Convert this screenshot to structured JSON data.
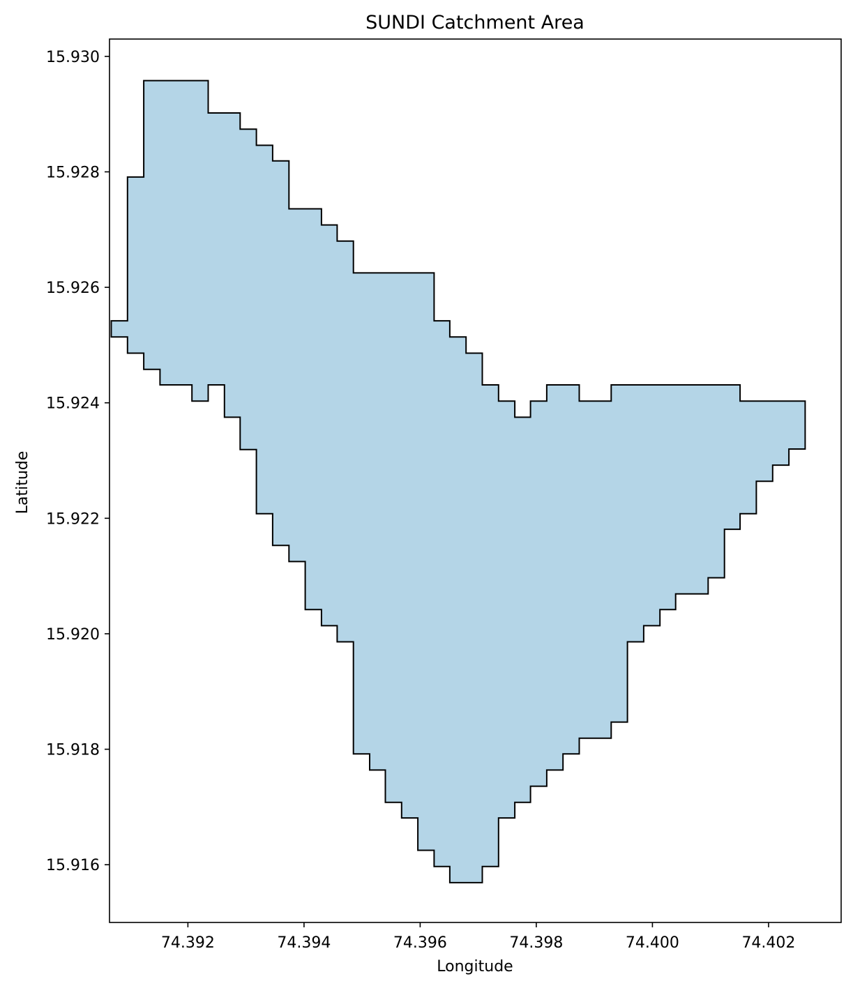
{
  "chart_data": {
    "type": "map",
    "title": "SUNDI Catchment Area",
    "xlabel": "Longitude",
    "ylabel": "Latitude",
    "xlim": [
      74.39065,
      74.40325
    ],
    "ylim": [
      15.915,
      15.9303
    ],
    "x_ticks": [
      {
        "value": 74.392,
        "label": "74.392"
      },
      {
        "value": 74.394,
        "label": "74.394"
      },
      {
        "value": 74.396,
        "label": "74.396"
      },
      {
        "value": 74.398,
        "label": "74.398"
      },
      {
        "value": 74.4,
        "label": "74.400"
      },
      {
        "value": 74.402,
        "label": "74.402"
      }
    ],
    "y_ticks": [
      {
        "value": 15.916,
        "label": "15.916"
      },
      {
        "value": 15.918,
        "label": "15.918"
      },
      {
        "value": 15.92,
        "label": "15.920"
      },
      {
        "value": 15.922,
        "label": "15.922"
      },
      {
        "value": 15.924,
        "label": "15.924"
      },
      {
        "value": 15.926,
        "label": "15.926"
      },
      {
        "value": 15.928,
        "label": "15.928"
      },
      {
        "value": 15.93,
        "label": "15.930"
      }
    ],
    "fill_color": "#b4d5e7",
    "edge_color": "#000000",
    "polygon": [
      [
        74.39124,
        15.92958
      ],
      [
        74.39235,
        15.92958
      ],
      [
        74.39235,
        15.92902
      ],
      [
        74.3929,
        15.92902
      ],
      [
        74.3929,
        15.92874
      ],
      [
        74.39318,
        15.92874
      ],
      [
        74.39318,
        15.92846
      ],
      [
        74.39346,
        15.92846
      ],
      [
        74.39346,
        15.92819
      ],
      [
        74.39374,
        15.92819
      ],
      [
        74.39374,
        15.92736
      ],
      [
        74.3943,
        15.92736
      ],
      [
        74.3943,
        15.92708
      ],
      [
        74.39457,
        15.92708
      ],
      [
        74.39457,
        15.9268
      ],
      [
        74.39485,
        15.9268
      ],
      [
        74.39485,
        15.92625
      ],
      [
        74.39624,
        15.92625
      ],
      [
        74.39624,
        15.92542
      ],
      [
        74.39651,
        15.92542
      ],
      [
        74.39651,
        15.92514
      ],
      [
        74.39679,
        15.92514
      ],
      [
        74.39679,
        15.92486
      ],
      [
        74.39707,
        15.92486
      ],
      [
        74.39707,
        15.92431
      ],
      [
        74.39735,
        15.92431
      ],
      [
        74.39735,
        15.92403
      ],
      [
        74.39763,
        15.92403
      ],
      [
        74.39763,
        15.92375
      ],
      [
        74.3979,
        15.92375
      ],
      [
        74.3979,
        15.92403
      ],
      [
        74.39818,
        15.92403
      ],
      [
        74.39818,
        15.92431
      ],
      [
        74.39874,
        15.92431
      ],
      [
        74.39874,
        15.92403
      ],
      [
        74.39929,
        15.92403
      ],
      [
        74.39929,
        15.92431
      ],
      [
        74.40151,
        15.92431
      ],
      [
        74.40151,
        15.92403
      ],
      [
        74.40263,
        15.92403
      ],
      [
        74.40263,
        15.9232
      ],
      [
        74.40235,
        15.9232
      ],
      [
        74.40235,
        15.92292
      ],
      [
        74.40207,
        15.92292
      ],
      [
        74.40207,
        15.92264
      ],
      [
        74.40179,
        15.92264
      ],
      [
        74.40179,
        15.92208
      ],
      [
        74.40151,
        15.92208
      ],
      [
        74.40151,
        15.92181
      ],
      [
        74.40124,
        15.92181
      ],
      [
        74.40124,
        15.92097
      ],
      [
        74.40096,
        15.92097
      ],
      [
        74.40096,
        15.92069
      ],
      [
        74.4004,
        15.92069
      ],
      [
        74.4004,
        15.92042
      ],
      [
        74.40013,
        15.92042
      ],
      [
        74.40013,
        15.92014
      ],
      [
        74.39985,
        15.92014
      ],
      [
        74.39985,
        15.91986
      ],
      [
        74.39957,
        15.91986
      ],
      [
        74.39957,
        15.91847
      ],
      [
        74.39929,
        15.91847
      ],
      [
        74.39929,
        15.91819
      ],
      [
        74.39874,
        15.91819
      ],
      [
        74.39874,
        15.91792
      ],
      [
        74.39846,
        15.91792
      ],
      [
        74.39846,
        15.91764
      ],
      [
        74.39818,
        15.91764
      ],
      [
        74.39818,
        15.91736
      ],
      [
        74.3979,
        15.91736
      ],
      [
        74.3979,
        15.91708
      ],
      [
        74.39763,
        15.91708
      ],
      [
        74.39763,
        15.91681
      ],
      [
        74.39735,
        15.91681
      ],
      [
        74.39735,
        15.91597
      ],
      [
        74.39707,
        15.91597
      ],
      [
        74.39707,
        15.91569
      ],
      [
        74.39651,
        15.91569
      ],
      [
        74.39651,
        15.91597
      ],
      [
        74.39624,
        15.91597
      ],
      [
        74.39624,
        15.91625
      ],
      [
        74.39596,
        15.91625
      ],
      [
        74.39596,
        15.91681
      ],
      [
        74.39568,
        15.91681
      ],
      [
        74.39568,
        15.91708
      ],
      [
        74.3954,
        15.91708
      ],
      [
        74.3954,
        15.91764
      ],
      [
        74.39513,
        15.91764
      ],
      [
        74.39513,
        15.91792
      ],
      [
        74.39485,
        15.91792
      ],
      [
        74.39485,
        15.91986
      ],
      [
        74.39457,
        15.91986
      ],
      [
        74.39457,
        15.92014
      ],
      [
        74.3943,
        15.92014
      ],
      [
        74.3943,
        15.92042
      ],
      [
        74.39402,
        15.92042
      ],
      [
        74.39402,
        15.92125
      ],
      [
        74.39374,
        15.92125
      ],
      [
        74.39374,
        15.92153
      ],
      [
        74.39346,
        15.92153
      ],
      [
        74.39346,
        15.92208
      ],
      [
        74.39318,
        15.92208
      ],
      [
        74.39318,
        15.92319
      ],
      [
        74.3929,
        15.92319
      ],
      [
        74.3929,
        15.92375
      ],
      [
        74.39263,
        15.92375
      ],
      [
        74.39263,
        15.92431
      ],
      [
        74.39235,
        15.92431
      ],
      [
        74.39235,
        15.92403
      ],
      [
        74.39207,
        15.92403
      ],
      [
        74.39207,
        15.92431
      ],
      [
        74.39152,
        15.92431
      ],
      [
        74.39152,
        15.92458
      ],
      [
        74.39124,
        15.92458
      ],
      [
        74.39124,
        15.92486
      ],
      [
        74.39096,
        15.92486
      ],
      [
        74.39096,
        15.92514
      ],
      [
        74.39068,
        15.92514
      ],
      [
        74.39068,
        15.92542
      ],
      [
        74.39096,
        15.92542
      ],
      [
        74.39096,
        15.92791
      ],
      [
        74.39124,
        15.92791
      ]
    ]
  }
}
